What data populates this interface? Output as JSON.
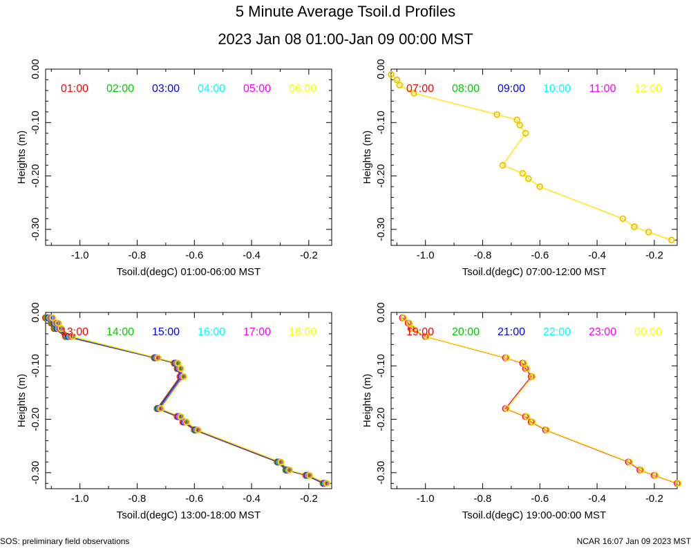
{
  "header": {
    "title": "5 Minute Average Tsoil.d Profiles",
    "subtitle": "2023 Jan 08 01:00-Jan 09 00:00 MST"
  },
  "footer": {
    "left": "SOS: preliminary field observations",
    "right": "NCAR 16:07 Jan 09 2023 MST"
  },
  "colors": [
    "#ff0000",
    "#00cc00",
    "#0000ff",
    "#00ffff",
    "#ff00ff",
    "#ffff00"
  ],
  "chart_data": [
    {
      "type": "line",
      "xlabel": "Tsoil.d(degC) 01:00-06:00 MST",
      "ylabel": "Heights (m)",
      "xlim": [
        -1.12,
        -0.12
      ],
      "ylim": [
        -0.33,
        0.0
      ],
      "xticks": [
        -1.0,
        -0.8,
        -0.6,
        -0.4,
        -0.2
      ],
      "xtick_labels": [
        "-1.0",
        "-0.8",
        "-0.6",
        "-0.4",
        "-0.2"
      ],
      "yticks": [
        0.0,
        -0.1,
        -0.2,
        -0.3
      ],
      "ytick_labels": [
        "0.00",
        "-0.10",
        "-0.20",
        "-0.30"
      ],
      "legend": [
        "01:00",
        "02:00",
        "03:00",
        "04:00",
        "05:00",
        "06:00"
      ],
      "series": []
    },
    {
      "type": "line",
      "xlabel": "Tsoil.d(degC) 07:00-12:00 MST",
      "ylabel": "Heights (m)",
      "xlim": [
        -1.12,
        -0.12
      ],
      "ylim": [
        -0.33,
        0.0
      ],
      "xticks": [
        -1.0,
        -0.8,
        -0.6,
        -0.4,
        -0.2
      ],
      "xtick_labels": [
        "-1.0",
        "-0.8",
        "-0.6",
        "-0.4",
        "-0.2"
      ],
      "yticks": [
        0.0,
        -0.1,
        -0.2,
        -0.3
      ],
      "ytick_labels": [
        "0.00",
        "-0.10",
        "-0.20",
        "-0.30"
      ],
      "legend": [
        "07:00",
        "08:00",
        "09:00",
        "10:00",
        "11:00",
        "12:00"
      ],
      "series": [
        {
          "name": "11:00",
          "color": "#ff00ff",
          "x": [
            -1.12,
            -1.1,
            -1.09,
            -1.04,
            -0.75,
            -0.68,
            -0.67,
            -0.65,
            -0.73,
            -0.66,
            -0.64,
            -0.6,
            -0.31,
            -0.27,
            -0.22,
            -0.14
          ],
          "y": [
            -0.01,
            -0.02,
            -0.03,
            -0.045,
            -0.085,
            -0.095,
            -0.105,
            -0.12,
            -0.18,
            -0.195,
            -0.205,
            -0.22,
            -0.28,
            -0.295,
            -0.305,
            -0.32
          ]
        },
        {
          "name": "12:00",
          "color": "#ffff00",
          "x": [
            -1.12,
            -1.1,
            -1.09,
            -1.04,
            -0.75,
            -0.68,
            -0.67,
            -0.65,
            -0.73,
            -0.66,
            -0.64,
            -0.6,
            -0.31,
            -0.27,
            -0.22,
            -0.14
          ],
          "y": [
            -0.01,
            -0.02,
            -0.03,
            -0.045,
            -0.085,
            -0.095,
            -0.105,
            -0.12,
            -0.18,
            -0.195,
            -0.205,
            -0.22,
            -0.28,
            -0.295,
            -0.305,
            -0.32
          ]
        }
      ]
    },
    {
      "type": "line",
      "xlabel": "Tsoil.d(degC) 13:00-18:00 MST",
      "ylabel": "Heights (m)",
      "xlim": [
        -1.12,
        -0.12
      ],
      "ylim": [
        -0.33,
        0.0
      ],
      "xticks": [
        -1.0,
        -0.8,
        -0.6,
        -0.4,
        -0.2
      ],
      "xtick_labels": [
        "-1.0",
        "-0.8",
        "-0.6",
        "-0.4",
        "-0.2"
      ],
      "yticks": [
        0.0,
        -0.1,
        -0.2,
        -0.3
      ],
      "ytick_labels": [
        "0.00",
        "-0.10",
        "-0.20",
        "-0.30"
      ],
      "legend": [
        "13:00",
        "14:00",
        "15:00",
        "16:00",
        "17:00",
        "18:00"
      ],
      "series": [
        {
          "name": "13:00",
          "color": "#ff0000",
          "x": [
            -1.12,
            -1.1,
            -1.09,
            -1.05,
            -0.74,
            -0.67,
            -0.66,
            -0.65,
            -0.73,
            -0.66,
            -0.64,
            -0.6,
            -0.31,
            -0.28,
            -0.21,
            -0.15
          ],
          "y": [
            -0.01,
            -0.02,
            -0.03,
            -0.045,
            -0.085,
            -0.095,
            -0.105,
            -0.12,
            -0.18,
            -0.195,
            -0.205,
            -0.22,
            -0.28,
            -0.295,
            -0.305,
            -0.32
          ]
        },
        {
          "name": "14:00",
          "color": "#00cc00",
          "x": [
            -1.115,
            -1.095,
            -1.085,
            -1.045,
            -0.737,
            -0.667,
            -0.657,
            -0.647,
            -0.727,
            -0.657,
            -0.637,
            -0.597,
            -0.307,
            -0.277,
            -0.207,
            -0.147
          ],
          "y": [
            -0.01,
            -0.02,
            -0.03,
            -0.045,
            -0.085,
            -0.095,
            -0.105,
            -0.12,
            -0.18,
            -0.195,
            -0.205,
            -0.22,
            -0.28,
            -0.295,
            -0.305,
            -0.32
          ]
        },
        {
          "name": "15:00",
          "color": "#0000ff",
          "x": [
            -1.11,
            -1.09,
            -1.08,
            -1.04,
            -0.735,
            -0.665,
            -0.655,
            -0.645,
            -0.725,
            -0.655,
            -0.635,
            -0.595,
            -0.305,
            -0.275,
            -0.205,
            -0.145
          ],
          "y": [
            -0.01,
            -0.02,
            -0.03,
            -0.045,
            -0.085,
            -0.095,
            -0.105,
            -0.12,
            -0.18,
            -0.195,
            -0.205,
            -0.22,
            -0.28,
            -0.295,
            -0.305,
            -0.32
          ]
        },
        {
          "name": "16:00",
          "color": "#00ffff",
          "x": [
            -1.105,
            -1.085,
            -1.075,
            -1.035,
            -0.732,
            -0.662,
            -0.652,
            -0.642,
            -0.722,
            -0.652,
            -0.632,
            -0.592,
            -0.302,
            -0.272,
            -0.202,
            -0.142
          ],
          "y": [
            -0.01,
            -0.02,
            -0.03,
            -0.045,
            -0.085,
            -0.095,
            -0.105,
            -0.12,
            -0.18,
            -0.195,
            -0.205,
            -0.22,
            -0.28,
            -0.295,
            -0.305,
            -0.32
          ]
        },
        {
          "name": "17:00",
          "color": "#ff00ff",
          "x": [
            -1.1,
            -1.08,
            -1.07,
            -1.03,
            -0.73,
            -0.66,
            -0.65,
            -0.64,
            -0.72,
            -0.65,
            -0.63,
            -0.59,
            -0.3,
            -0.27,
            -0.2,
            -0.14
          ],
          "y": [
            -0.01,
            -0.02,
            -0.03,
            -0.045,
            -0.085,
            -0.095,
            -0.105,
            -0.12,
            -0.18,
            -0.195,
            -0.205,
            -0.22,
            -0.28,
            -0.295,
            -0.305,
            -0.32
          ]
        },
        {
          "name": "18:00",
          "color": "#ffff00",
          "x": [
            -1.095,
            -1.075,
            -1.065,
            -1.025,
            -0.727,
            -0.657,
            -0.647,
            -0.637,
            -0.717,
            -0.647,
            -0.627,
            -0.587,
            -0.297,
            -0.267,
            -0.197,
            -0.137
          ],
          "y": [
            -0.01,
            -0.02,
            -0.03,
            -0.045,
            -0.085,
            -0.095,
            -0.105,
            -0.12,
            -0.18,
            -0.195,
            -0.205,
            -0.22,
            -0.28,
            -0.295,
            -0.305,
            -0.32
          ]
        }
      ]
    },
    {
      "type": "line",
      "xlabel": "Tsoil.d(degC) 19:00-00:00 MST",
      "ylabel": "Heights (m)",
      "xlim": [
        -1.12,
        -0.12
      ],
      "ylim": [
        -0.33,
        0.0
      ],
      "xticks": [
        -1.0,
        -0.8,
        -0.6,
        -0.4,
        -0.2
      ],
      "xtick_labels": [
        "-1.0",
        "-0.8",
        "-0.6",
        "-0.4",
        "-0.2"
      ],
      "yticks": [
        0.0,
        -0.1,
        -0.2,
        -0.3
      ],
      "ytick_labels": [
        "0.00",
        "-0.10",
        "-0.20",
        "-0.30"
      ],
      "legend": [
        "19:00",
        "20:00",
        "21:00",
        "22:00",
        "23:00",
        "00:00"
      ],
      "series": [
        {
          "name": "19:00",
          "color": "#ff0000",
          "x": [
            -1.08,
            -1.06,
            -1.05,
            -1.0,
            -0.72,
            -0.66,
            -0.65,
            -0.63,
            -0.72,
            -0.65,
            -0.63,
            -0.58,
            -0.29,
            -0.25,
            -0.2,
            -0.12
          ],
          "y": [
            -0.01,
            -0.02,
            -0.03,
            -0.045,
            -0.085,
            -0.095,
            -0.105,
            -0.12,
            -0.18,
            -0.195,
            -0.205,
            -0.22,
            -0.28,
            -0.295,
            -0.305,
            -0.32
          ]
        },
        {
          "name": "23:00",
          "color": "#ff00ff",
          "x": [
            -1.078,
            -1.058,
            -1.048,
            -0.998,
            -0.718,
            -0.658,
            -0.648,
            -0.628,
            -0.718,
            -0.648,
            -0.628,
            -0.578,
            -0.288,
            -0.248,
            -0.198,
            -0.118
          ],
          "y": [
            -0.01,
            -0.02,
            -0.03,
            -0.045,
            -0.085,
            -0.095,
            -0.105,
            -0.12,
            -0.18,
            -0.195,
            -0.205,
            -0.22,
            -0.28,
            -0.295,
            -0.305,
            -0.32
          ]
        },
        {
          "name": "00:00",
          "color": "#ffff00",
          "x": [
            -1.076,
            -1.056,
            -1.046,
            -0.996,
            -0.716,
            -0.656,
            -0.646,
            -0.626,
            -0.716,
            -0.646,
            -0.626,
            -0.576,
            -0.286,
            -0.246,
            -0.196,
            -0.116
          ],
          "y": [
            -0.01,
            -0.02,
            -0.03,
            -0.045,
            -0.085,
            -0.095,
            -0.105,
            -0.12,
            -0.18,
            -0.195,
            -0.205,
            -0.22,
            -0.28,
            -0.295,
            -0.305,
            -0.32
          ]
        }
      ]
    }
  ]
}
